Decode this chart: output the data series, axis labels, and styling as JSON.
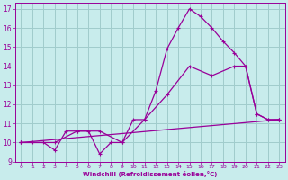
{
  "xlabel": "Windchill (Refroidissement éolien,°C)",
  "background_color": "#c8ecec",
  "grid_color": "#a0cccc",
  "line_color": "#990099",
  "xlim": [
    -0.5,
    23.5
  ],
  "ylim": [
    9,
    17.3
  ],
  "yticks": [
    9,
    10,
    11,
    12,
    13,
    14,
    15,
    16,
    17
  ],
  "xticks": [
    0,
    1,
    2,
    3,
    4,
    5,
    6,
    7,
    8,
    9,
    10,
    11,
    12,
    13,
    14,
    15,
    16,
    17,
    18,
    19,
    20,
    21,
    22,
    23
  ],
  "line1_x": [
    0,
    1,
    2,
    3,
    4,
    5,
    6,
    7,
    8,
    9,
    10,
    11,
    12,
    13,
    14,
    15,
    16,
    17,
    18,
    19,
    20,
    21,
    22,
    23
  ],
  "line1_y": [
    10,
    10,
    10,
    9.6,
    10.6,
    10.6,
    10.6,
    9.4,
    10.0,
    10.0,
    11.2,
    11.2,
    12.7,
    14.9,
    16.0,
    17.0,
    16.6,
    16.0,
    15.3,
    14.7,
    14.0,
    11.5,
    11.2,
    11.2
  ],
  "line2_x": [
    0,
    3,
    5,
    7,
    9,
    11,
    13,
    15,
    17,
    19,
    20,
    21,
    22,
    23
  ],
  "line2_y": [
    10,
    10,
    10.6,
    10.6,
    10.0,
    11.2,
    12.5,
    14.0,
    13.5,
    14.0,
    14.0,
    11.5,
    11.2,
    11.2
  ],
  "line3_x": [
    0,
    23
  ],
  "line3_y": [
    10.0,
    11.2
  ]
}
